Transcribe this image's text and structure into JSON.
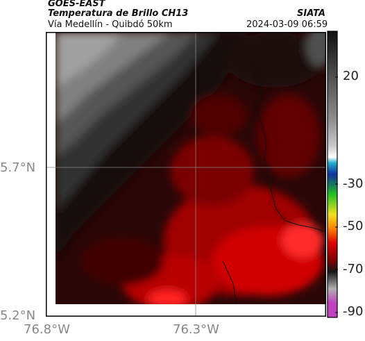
{
  "header": {
    "satellite": "GOES-EAST",
    "title": "Temperatura de Brillo CH13",
    "org": "SIATA",
    "route": "Vía Medellín - Quibdó 50km",
    "datetime": "2024-03-09 06:59"
  },
  "axes": {
    "lat_labels": [
      "5.7°N",
      "5.2°N"
    ],
    "lon_labels": [
      "76.8°W",
      "76.3°W"
    ]
  },
  "colorbar": {
    "ticks": [
      "20",
      "-30",
      "-50",
      "-70",
      "-90"
    ],
    "colors": [
      "#101010",
      "#404040",
      "#8a8a8a",
      "#c8c8c8",
      "#ffffff",
      "#20b0c8",
      "#1030a0",
      "#20c020",
      "#f0e020",
      "#ff8000",
      "#e00000",
      "#800000",
      "#181818",
      "#b0b0b0",
      "#c040c0"
    ]
  }
}
